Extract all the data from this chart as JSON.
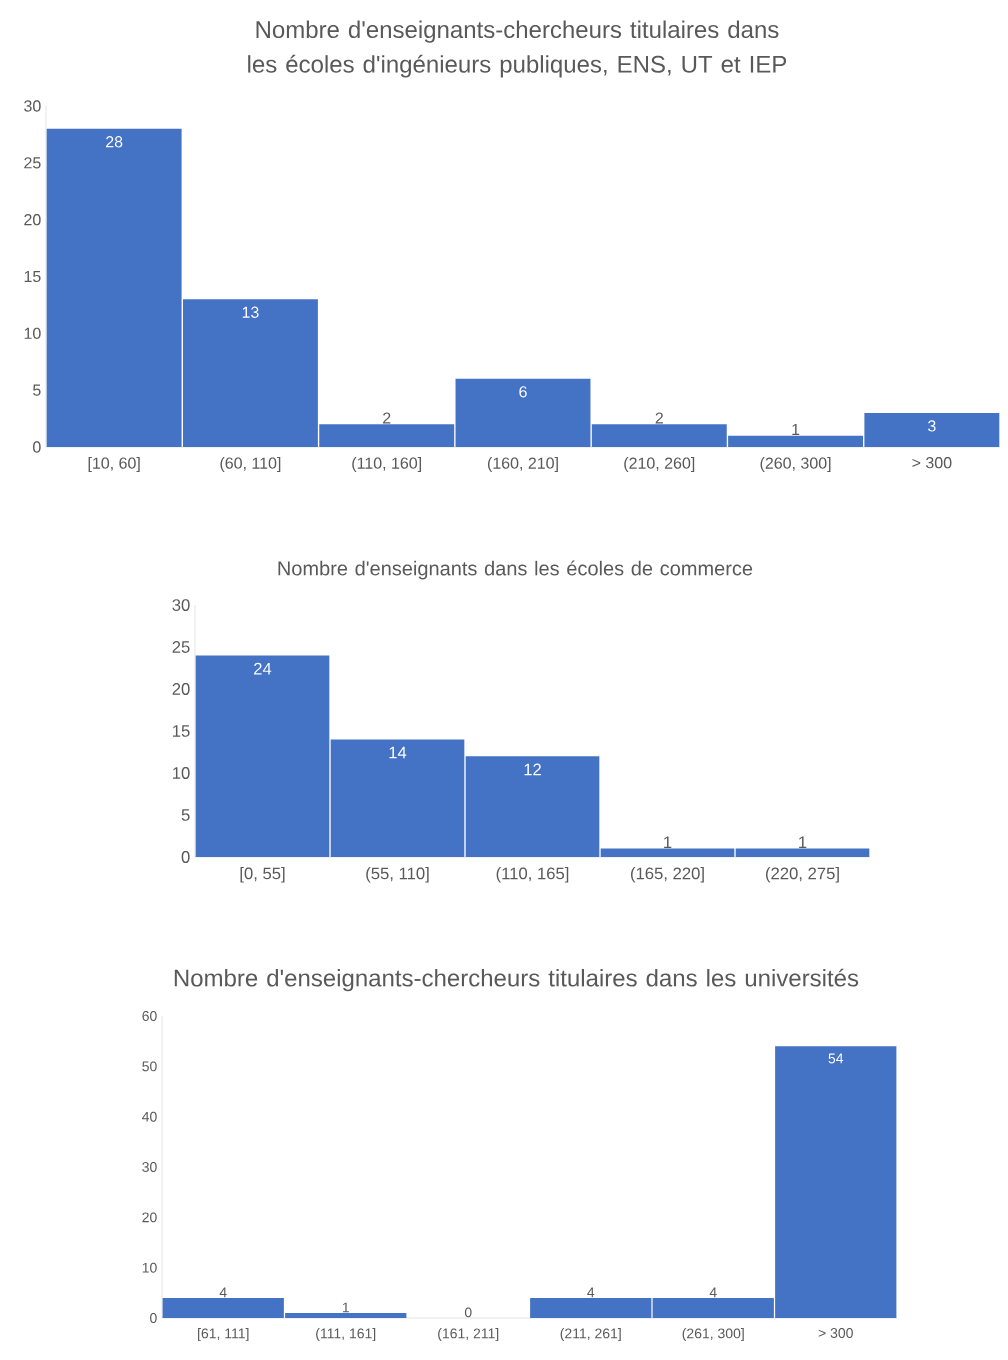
{
  "chart_data": [
    {
      "type": "bar",
      "title": "Nombre d'enseignants-chercheurs titulaires dans les écoles d'ingénieurs publiques, ENS, UT et IEP",
      "categories": [
        "[10, 60]",
        "(60, 110]",
        "(110, 160]",
        "(160, 210]",
        "(210, 260]",
        "(260, 300]",
        "> 300"
      ],
      "values": [
        28,
        13,
        2,
        6,
        2,
        1,
        3
      ],
      "color": "#4472c4",
      "ylim": [
        0,
        30
      ],
      "yticks": [
        0,
        5,
        10,
        15,
        20,
        25,
        30
      ],
      "data_labels": true
    },
    {
      "type": "bar",
      "title": "Nombre d'enseignants dans les écoles de commerce",
      "categories": [
        "[0, 55]",
        "(55, 110]",
        "(110, 165]",
        "(165, 220]",
        "(220, 275]"
      ],
      "values": [
        24,
        14,
        12,
        1,
        1
      ],
      "color": "#4472c4",
      "ylim": [
        0,
        30
      ],
      "yticks": [
        0,
        5,
        10,
        15,
        20,
        25,
        30
      ],
      "data_labels": true
    },
    {
      "type": "bar",
      "title": "Nombre d'enseignants-chercheurs titulaires dans les universités",
      "categories": [
        "[61, 111]",
        "(111, 161]",
        "(161, 211]",
        "(211, 261]",
        "(261, 300]",
        "> 300"
      ],
      "values": [
        4,
        1,
        0,
        4,
        4,
        54
      ],
      "color": "#4472c4",
      "ylim": [
        0,
        60
      ],
      "yticks": [
        0,
        10,
        20,
        30,
        40,
        50,
        60
      ],
      "data_labels": true
    }
  ]
}
